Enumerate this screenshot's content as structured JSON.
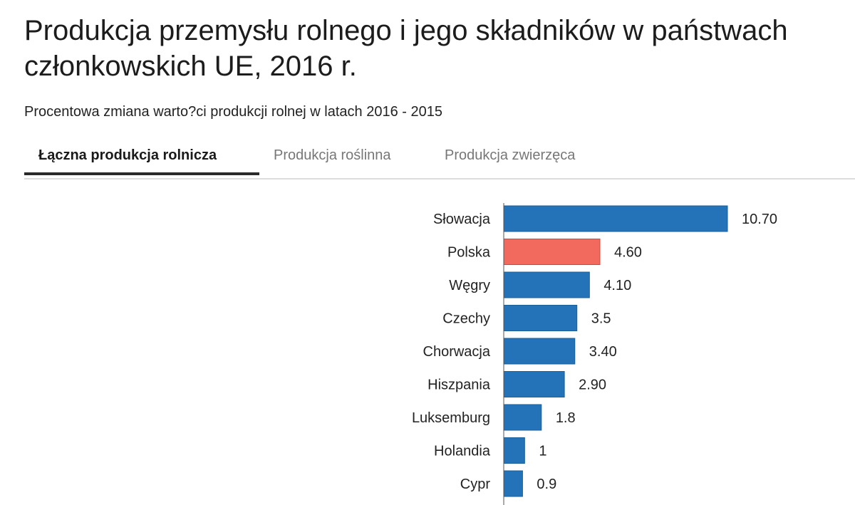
{
  "title": "Produkcja przemysłu rolnego i jego składników w państwach członkowskich UE, 2016 r.",
  "subtitle": "Procentowa zmiana warto?ci produkcji rolnej w latach 2016 - 2015",
  "tabs": [
    {
      "label": "Łączna produkcja rolnicza",
      "active": true
    },
    {
      "label": "Produkcja roślinna",
      "active": false
    },
    {
      "label": "Produkcja zwierzęca",
      "active": false
    }
  ],
  "colors": {
    "default_bar": "#2473b8",
    "highlight_bar": "#f26a5e"
  },
  "chart_data": {
    "type": "bar",
    "orientation": "horizontal",
    "categories": [
      "Słowacja",
      "Polska",
      "Węgry",
      "Czechy",
      "Chorwacja",
      "Hiszpania",
      "Luksemburg",
      "Holandia",
      "Cypr"
    ],
    "values": [
      10.7,
      4.6,
      4.1,
      3.5,
      3.4,
      2.9,
      1.8,
      1,
      0.9
    ],
    "value_labels": [
      "10.70",
      "4.60",
      "4.10",
      "3.5",
      "3.40",
      "2.90",
      "1.8",
      "1",
      "0.9"
    ],
    "highlight": [
      "Polska"
    ],
    "xlim": [
      0,
      10.7
    ],
    "grid": false,
    "legend": "none"
  }
}
